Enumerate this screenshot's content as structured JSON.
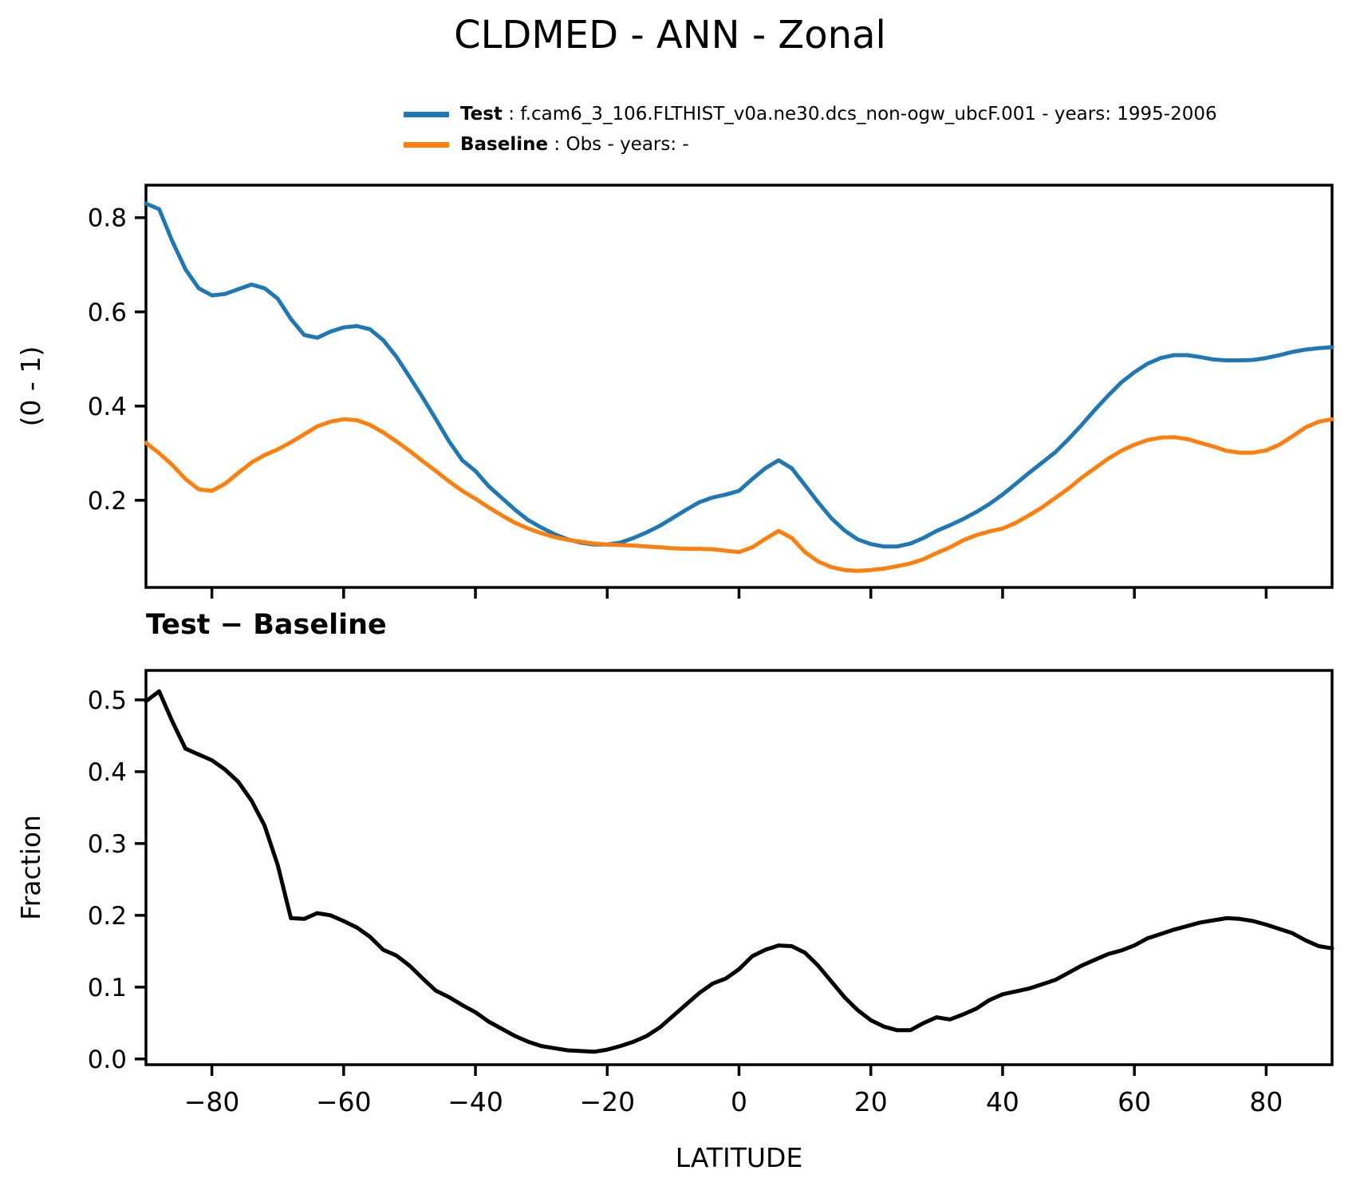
{
  "title": "CLDMED - ANN - Zonal",
  "legend": {
    "items": [
      {
        "label": "Test",
        "rest": " : f.cam6_3_106.FLTHIST_v0a.ne30.dcs_non-ogw_ubcF.001 - years: 1995-2006",
        "color": "#1f77b4"
      },
      {
        "label": "Baseline",
        "rest": " : Obs - years: -",
        "color": "#ff7f0e"
      }
    ]
  },
  "diff_panel_title": "Test − Baseline",
  "colors": {
    "test_line": "#1f77b4",
    "baseline_line": "#ff7f0e",
    "diff_line": "#000000",
    "axes": "#000000",
    "background": "#ffffff"
  },
  "chart_data": [
    {
      "type": "line",
      "title": "CLDMED - ANN - Zonal",
      "xlabel": "",
      "ylabel": "(0 - 1)",
      "xlim": [
        -90,
        90
      ],
      "ylim": [
        0.015,
        0.869
      ],
      "xticks": [
        -80,
        -60,
        -40,
        -20,
        0,
        20,
        40,
        60,
        80
      ],
      "xtick_labels": [],
      "yticks": [
        0.2,
        0.4,
        0.6,
        0.8
      ],
      "ytick_labels": [
        "0.2",
        "0.4",
        "0.6",
        "0.8"
      ],
      "grid": false,
      "legend_position": "above-top-center",
      "x": [
        -90,
        -88,
        -86,
        -84,
        -82,
        -80,
        -78,
        -76,
        -74,
        -72,
        -70,
        -68,
        -66,
        -64,
        -62,
        -60,
        -58,
        -56,
        -54,
        -52,
        -50,
        -48,
        -46,
        -44,
        -42,
        -40,
        -38,
        -36,
        -34,
        -32,
        -30,
        -28,
        -26,
        -24,
        -22,
        -20,
        -18,
        -16,
        -14,
        -12,
        -10,
        -8,
        -6,
        -4,
        -2,
        0,
        2,
        4,
        6,
        8,
        10,
        12,
        14,
        16,
        18,
        20,
        22,
        24,
        26,
        28,
        30,
        32,
        34,
        36,
        38,
        40,
        42,
        44,
        46,
        48,
        50,
        52,
        54,
        56,
        58,
        60,
        62,
        64,
        66,
        68,
        70,
        72,
        74,
        76,
        78,
        80,
        82,
        84,
        86,
        88,
        90
      ],
      "series": [
        {
          "name": "Test",
          "color": "#1f77b4",
          "values": [
            0.83,
            0.818,
            0.75,
            0.69,
            0.65,
            0.635,
            0.638,
            0.648,
            0.658,
            0.65,
            0.628,
            0.585,
            0.551,
            0.545,
            0.558,
            0.567,
            0.57,
            0.563,
            0.54,
            0.505,
            0.462,
            0.418,
            0.372,
            0.325,
            0.285,
            0.262,
            0.23,
            0.205,
            0.18,
            0.158,
            0.142,
            0.128,
            0.117,
            0.11,
            0.106,
            0.106,
            0.11,
            0.12,
            0.132,
            0.146,
            0.163,
            0.18,
            0.196,
            0.206,
            0.212,
            0.22,
            0.245,
            0.268,
            0.285,
            0.268,
            0.232,
            0.196,
            0.162,
            0.136,
            0.117,
            0.107,
            0.102,
            0.102,
            0.108,
            0.12,
            0.135,
            0.147,
            0.16,
            0.175,
            0.192,
            0.212,
            0.235,
            0.258,
            0.28,
            0.302,
            0.33,
            0.36,
            0.392,
            0.422,
            0.45,
            0.472,
            0.49,
            0.502,
            0.508,
            0.508,
            0.504,
            0.499,
            0.497,
            0.497,
            0.498,
            0.502,
            0.508,
            0.515,
            0.52,
            0.523,
            0.525
          ]
        },
        {
          "name": "Baseline",
          "color": "#ff7f0e",
          "values": [
            0.322,
            0.3,
            0.275,
            0.245,
            0.223,
            0.22,
            0.235,
            0.258,
            0.28,
            0.296,
            0.308,
            0.323,
            0.34,
            0.357,
            0.367,
            0.372,
            0.37,
            0.36,
            0.344,
            0.325,
            0.305,
            0.283,
            0.262,
            0.24,
            0.22,
            0.203,
            0.185,
            0.168,
            0.152,
            0.14,
            0.13,
            0.122,
            0.116,
            0.112,
            0.108,
            0.106,
            0.105,
            0.104,
            0.102,
            0.1,
            0.098,
            0.097,
            0.097,
            0.096,
            0.093,
            0.09,
            0.1,
            0.118,
            0.135,
            0.12,
            0.09,
            0.07,
            0.058,
            0.052,
            0.05,
            0.052,
            0.055,
            0.06,
            0.066,
            0.075,
            0.088,
            0.1,
            0.115,
            0.126,
            0.134,
            0.14,
            0.152,
            0.168,
            0.185,
            0.205,
            0.225,
            0.248,
            0.268,
            0.288,
            0.305,
            0.318,
            0.328,
            0.333,
            0.334,
            0.33,
            0.322,
            0.314,
            0.305,
            0.301,
            0.301,
            0.306,
            0.318,
            0.336,
            0.355,
            0.367,
            0.372
          ]
        }
      ]
    },
    {
      "type": "line",
      "title": "Test − Baseline",
      "xlabel": "LATITUDE",
      "ylabel": "Fraction",
      "xlim": [
        -90,
        90
      ],
      "ylim": [
        -0.008,
        0.541
      ],
      "xticks": [
        -80,
        -60,
        -40,
        -20,
        0,
        20,
        40,
        60,
        80
      ],
      "xtick_labels": [
        "−80",
        "−60",
        "−40",
        "−20",
        "0",
        "20",
        "40",
        "60",
        "80"
      ],
      "yticks": [
        0.0,
        0.1,
        0.2,
        0.3,
        0.4,
        0.5
      ],
      "ytick_labels": [
        "0.0",
        "0.1",
        "0.2",
        "0.3",
        "0.4",
        "0.5"
      ],
      "grid": false,
      "x": [
        -90,
        -88,
        -86,
        -84,
        -82,
        -80,
        -78,
        -76,
        -74,
        -72,
        -70,
        -68,
        -66,
        -64,
        -62,
        -60,
        -58,
        -56,
        -54,
        -52,
        -50,
        -48,
        -46,
        -44,
        -42,
        -40,
        -38,
        -36,
        -34,
        -32,
        -30,
        -28,
        -26,
        -24,
        -22,
        -20,
        -18,
        -16,
        -14,
        -12,
        -10,
        -8,
        -6,
        -4,
        -2,
        0,
        2,
        4,
        6,
        8,
        10,
        12,
        14,
        16,
        18,
        20,
        22,
        24,
        26,
        28,
        30,
        32,
        34,
        36,
        38,
        40,
        42,
        44,
        46,
        48,
        50,
        52,
        54,
        56,
        58,
        60,
        62,
        64,
        66,
        68,
        70,
        72,
        74,
        76,
        78,
        80,
        82,
        84,
        86,
        88,
        90
      ],
      "series": [
        {
          "name": "Test − Baseline",
          "color": "#000000",
          "values": [
            0.498,
            0.512,
            0.47,
            0.432,
            0.424,
            0.416,
            0.403,
            0.386,
            0.36,
            0.325,
            0.27,
            0.196,
            0.195,
            0.203,
            0.2,
            0.192,
            0.183,
            0.17,
            0.152,
            0.144,
            0.13,
            0.112,
            0.095,
            0.086,
            0.075,
            0.065,
            0.052,
            0.042,
            0.032,
            0.024,
            0.018,
            0.015,
            0.012,
            0.011,
            0.01,
            0.013,
            0.018,
            0.024,
            0.032,
            0.044,
            0.06,
            0.076,
            0.092,
            0.105,
            0.112,
            0.125,
            0.143,
            0.152,
            0.158,
            0.157,
            0.148,
            0.13,
            0.108,
            0.086,
            0.068,
            0.054,
            0.045,
            0.04,
            0.04,
            0.05,
            0.058,
            0.055,
            0.062,
            0.07,
            0.082,
            0.09,
            0.094,
            0.098,
            0.104,
            0.11,
            0.12,
            0.13,
            0.138,
            0.146,
            0.151,
            0.158,
            0.168,
            0.174,
            0.18,
            0.185,
            0.19,
            0.193,
            0.196,
            0.195,
            0.192,
            0.187,
            0.181,
            0.175,
            0.165,
            0.157,
            0.154
          ]
        }
      ]
    }
  ]
}
